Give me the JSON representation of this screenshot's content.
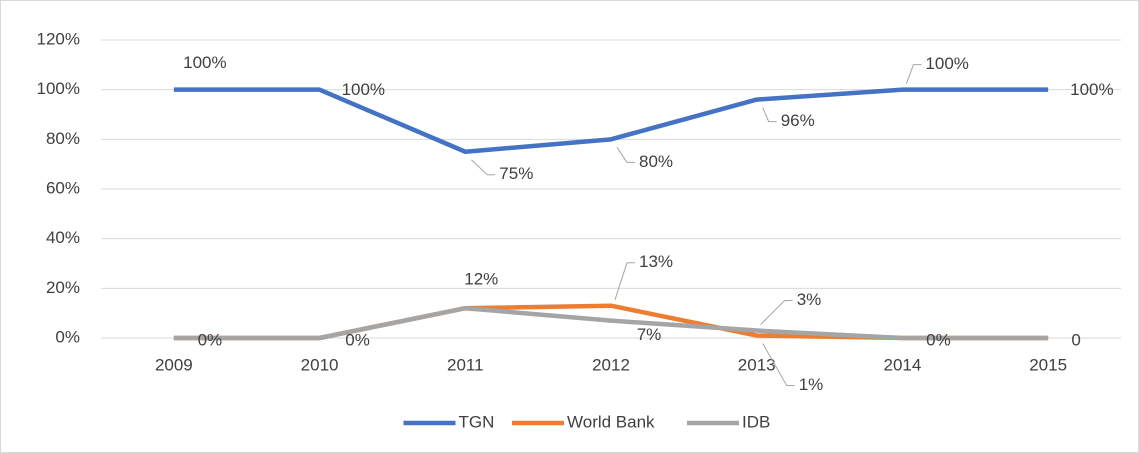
{
  "chart_data": {
    "type": "line",
    "categories": [
      "2009",
      "2010",
      "2011",
      "2012",
      "2013",
      "2014",
      "2015"
    ],
    "series": [
      {
        "name": "TGN",
        "color": "#4472c4",
        "values": [
          100,
          100,
          75,
          80,
          96,
          100,
          100
        ],
        "value_labels": [
          "100%",
          "100%",
          "75%",
          "80%",
          "96%",
          "100%",
          "100%"
        ]
      },
      {
        "name": "World Bank",
        "color": "#ed7d31",
        "values": [
          0,
          0,
          12,
          13,
          1,
          0,
          0
        ],
        "value_labels": [
          null,
          null,
          null,
          "13%",
          "1%",
          null,
          null
        ]
      },
      {
        "name": "IDB",
        "color": "#a5a5a5",
        "values": [
          0,
          0,
          12,
          7,
          3,
          0,
          0
        ],
        "value_labels": [
          "0%",
          "0%",
          "12%",
          "7%",
          "3%",
          "0%",
          "0"
        ]
      }
    ],
    "ylim": [
      0,
      120
    ],
    "yticks": [
      {
        "value": 0,
        "label": "0%"
      },
      {
        "value": 20,
        "label": "20%"
      },
      {
        "value": 40,
        "label": "40%"
      },
      {
        "value": 60,
        "label": "60%"
      },
      {
        "value": 80,
        "label": "80%"
      },
      {
        "value": 100,
        "label": "100%"
      },
      {
        "value": 120,
        "label": "120%"
      }
    ],
    "grid": true,
    "legend": "bottom"
  }
}
